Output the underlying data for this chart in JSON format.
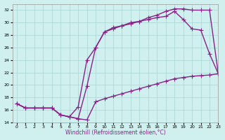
{
  "xlabel": "Windchill (Refroidissement éolien,°C)",
  "ylabel": "",
  "xlim": [
    -0.5,
    23
  ],
  "ylim": [
    14,
    33
  ],
  "xticks": [
    0,
    1,
    2,
    3,
    4,
    5,
    6,
    7,
    8,
    9,
    10,
    11,
    12,
    13,
    14,
    15,
    16,
    17,
    18,
    19,
    20,
    21,
    22,
    23
  ],
  "yticks": [
    14,
    16,
    18,
    20,
    22,
    24,
    26,
    28,
    30,
    32
  ],
  "bg_color": "#cff0ee",
  "grid_color": "#a8d4d2",
  "line_color": "#882288",
  "line1_x": [
    0,
    1,
    2,
    3,
    4,
    5,
    6,
    7,
    8,
    9,
    10,
    11,
    12,
    13,
    14,
    15,
    16,
    17,
    18,
    19,
    20,
    21,
    22,
    23
  ],
  "line1_y": [
    17.0,
    16.3,
    16.3,
    16.3,
    16.3,
    15.2,
    14.9,
    14.6,
    14.4,
    17.3,
    17.8,
    18.2,
    18.6,
    19.0,
    19.4,
    19.8,
    20.2,
    20.6,
    21.0,
    21.2,
    21.4,
    21.5,
    21.6,
    21.8
  ],
  "line2_x": [
    0,
    1,
    2,
    3,
    4,
    5,
    6,
    7,
    8,
    9,
    10,
    11,
    12,
    13,
    14,
    15,
    16,
    17,
    18,
    19,
    20,
    21,
    22,
    23
  ],
  "line2_y": [
    17.0,
    16.3,
    16.3,
    16.3,
    16.3,
    15.2,
    14.9,
    16.5,
    24.0,
    26.0,
    28.5,
    29.0,
    29.5,
    30.0,
    30.2,
    30.5,
    30.8,
    31.0,
    31.8,
    30.5,
    29.0,
    28.8,
    25.0,
    21.8
  ],
  "line3_x": [
    0,
    1,
    2,
    3,
    4,
    5,
    6,
    7,
    8,
    9,
    10,
    11,
    12,
    13,
    14,
    15,
    16,
    17,
    18,
    19,
    20,
    21,
    22,
    23
  ],
  "line3_y": [
    17.0,
    16.3,
    16.3,
    16.3,
    16.3,
    15.2,
    14.9,
    14.6,
    19.8,
    26.0,
    28.5,
    29.2,
    29.5,
    29.8,
    30.2,
    30.8,
    31.2,
    31.8,
    32.2,
    32.2,
    32.0,
    32.0,
    32.0,
    21.8
  ],
  "marker": "+",
  "marker_size": 4,
  "linewidth": 1.0
}
